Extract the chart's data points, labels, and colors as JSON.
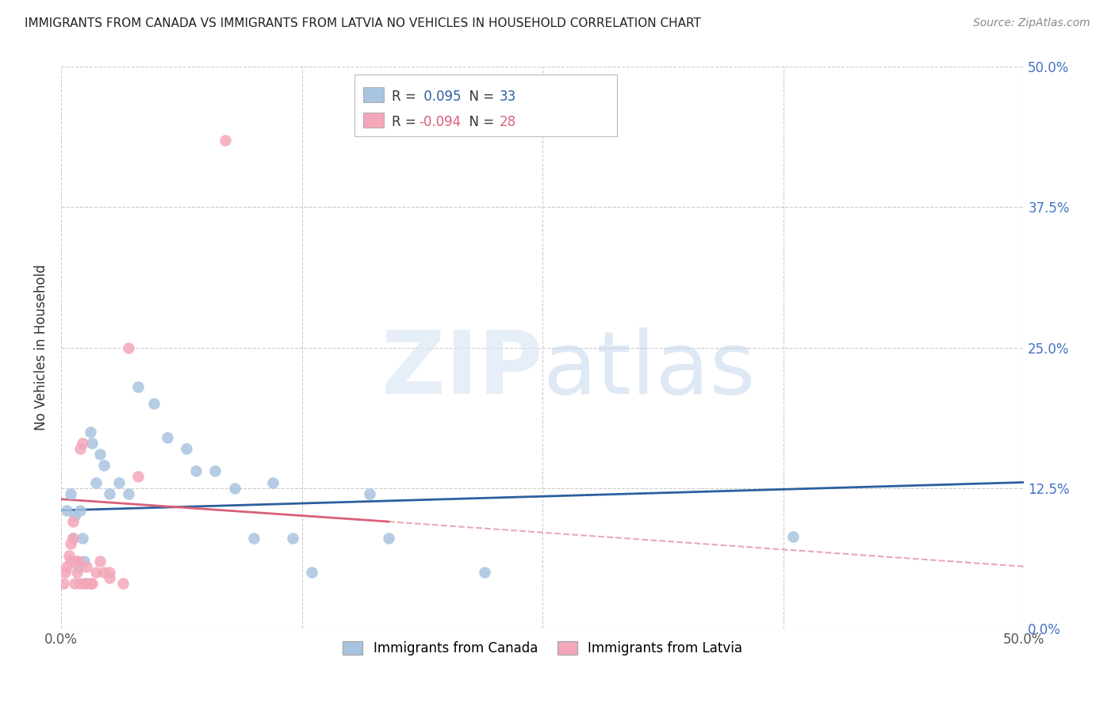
{
  "title": "IMMIGRANTS FROM CANADA VS IMMIGRANTS FROM LATVIA NO VEHICLES IN HOUSEHOLD CORRELATION CHART",
  "source": "Source: ZipAtlas.com",
  "ylabel": "No Vehicles in Household",
  "canada_R": 0.095,
  "canada_N": 33,
  "latvia_R": -0.094,
  "latvia_N": 28,
  "canada_color": "#a8c4e0",
  "latvia_color": "#f4a7b9",
  "canada_line_color": "#2c5f9e",
  "latvia_line_color": "#d9607a",
  "legend_label_canada": "Immigrants from Canada",
  "legend_label_latvia": "Immigrants from Latvia",
  "canada_x": [
    0.003,
    0.005,
    0.006,
    0.007,
    0.008,
    0.009,
    0.01,
    0.011,
    0.012,
    0.013,
    0.015,
    0.016,
    0.018,
    0.02,
    0.022,
    0.025,
    0.03,
    0.035,
    0.04,
    0.048,
    0.055,
    0.065,
    0.07,
    0.08,
    0.09,
    0.1,
    0.11,
    0.12,
    0.13,
    0.16,
    0.17,
    0.22,
    0.38
  ],
  "canada_y": [
    0.105,
    0.12,
    0.08,
    0.1,
    0.06,
    0.055,
    0.105,
    0.08,
    0.06,
    0.04,
    0.175,
    0.165,
    0.13,
    0.155,
    0.145,
    0.12,
    0.13,
    0.12,
    0.215,
    0.2,
    0.17,
    0.16,
    0.14,
    0.14,
    0.125,
    0.08,
    0.13,
    0.08,
    0.05,
    0.12,
    0.08,
    0.05,
    0.082
  ],
  "latvia_x": [
    0.001,
    0.002,
    0.003,
    0.004,
    0.005,
    0.005,
    0.006,
    0.006,
    0.007,
    0.007,
    0.008,
    0.009,
    0.01,
    0.01,
    0.011,
    0.012,
    0.013,
    0.015,
    0.016,
    0.018,
    0.02,
    0.022,
    0.025,
    0.032,
    0.035,
    0.04,
    0.085,
    0.025
  ],
  "latvia_y": [
    0.04,
    0.05,
    0.055,
    0.065,
    0.06,
    0.075,
    0.08,
    0.095,
    0.06,
    0.04,
    0.05,
    0.06,
    0.04,
    0.16,
    0.165,
    0.04,
    0.055,
    0.04,
    0.04,
    0.05,
    0.06,
    0.05,
    0.045,
    0.04,
    0.25,
    0.135,
    0.435,
    0.05
  ],
  "xlim": [
    0.0,
    0.5
  ],
  "ylim": [
    0.0,
    0.5
  ],
  "xticks": [
    0.0,
    0.125,
    0.25,
    0.375,
    0.5
  ],
  "yticks": [
    0.0,
    0.125,
    0.25,
    0.375,
    0.5
  ],
  "right_ytick_labels": [
    "0.0%",
    "12.5%",
    "25.0%",
    "37.5%",
    "50.0%"
  ]
}
